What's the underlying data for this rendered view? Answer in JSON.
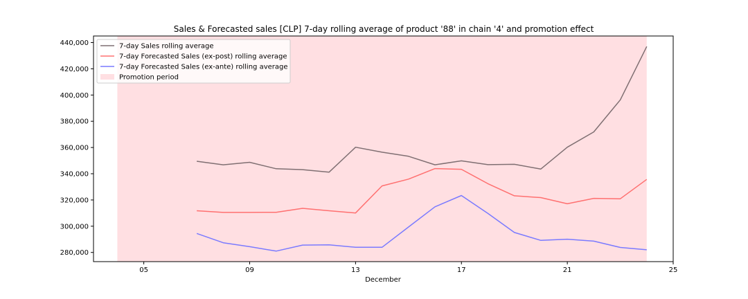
{
  "chart_data": {
    "type": "line",
    "title": "Sales & Forecasted sales [CLP] 7-day rolling average of product '88' in chain '4' and promotion effect",
    "xlabel": "December",
    "ylabel": "",
    "x_day_range": [
      3.1,
      25
    ],
    "ylim": [
      273000,
      445000
    ],
    "x_ticks": [
      {
        "day": 5,
        "label": "05"
      },
      {
        "day": 9,
        "label": "09"
      },
      {
        "day": 13,
        "label": "13"
      },
      {
        "day": 17,
        "label": "17"
      },
      {
        "day": 21,
        "label": "21"
      },
      {
        "day": 25,
        "label": "25"
      }
    ],
    "y_ticks": [
      {
        "value": 280000,
        "label": "280,000"
      },
      {
        "value": 300000,
        "label": "300,000"
      },
      {
        "value": 320000,
        "label": "320,000"
      },
      {
        "value": 340000,
        "label": "340,000"
      },
      {
        "value": 360000,
        "label": "360,000"
      },
      {
        "value": 380000,
        "label": "380,000"
      },
      {
        "value": 400000,
        "label": "400,000"
      },
      {
        "value": 420000,
        "label": "420,000"
      },
      {
        "value": 440000,
        "label": "440,000"
      }
    ],
    "x": [
      7,
      8,
      9,
      10,
      11,
      12,
      13,
      14,
      15,
      16,
      17,
      18,
      19,
      20,
      21,
      22,
      23,
      24
    ],
    "series": [
      {
        "name": "7-day Sales rolling average",
        "color": "#7f6f72",
        "values": [
          349500,
          346800,
          348700,
          343800,
          343100,
          341200,
          360200,
          356400,
          353300,
          346800,
          349800,
          346900,
          347200,
          343600,
          360200,
          371900,
          396300,
          437000
        ]
      },
      {
        "name": "7-day Forecasted Sales (ex-post) rolling average",
        "color": "#ff7070",
        "values": [
          311800,
          310500,
          310500,
          310600,
          313600,
          311800,
          310100,
          330700,
          335900,
          343900,
          343400,
          332400,
          323200,
          321800,
          317100,
          321200,
          320900,
          335700
        ]
      },
      {
        "name": "7-day Forecasted Sales (ex-ante) rolling average",
        "color": "#7a7aff",
        "values": [
          294500,
          287400,
          284400,
          281000,
          285600,
          285800,
          283900,
          283900,
          299400,
          314800,
          323400,
          309700,
          295200,
          289200,
          290100,
          288600,
          283800,
          282000
        ]
      }
    ],
    "promotion": {
      "name": "Promotion period",
      "color": "#ffdfe2",
      "start_day": 4,
      "end_day": 24
    },
    "legend_position": "top-left",
    "grid": false
  }
}
